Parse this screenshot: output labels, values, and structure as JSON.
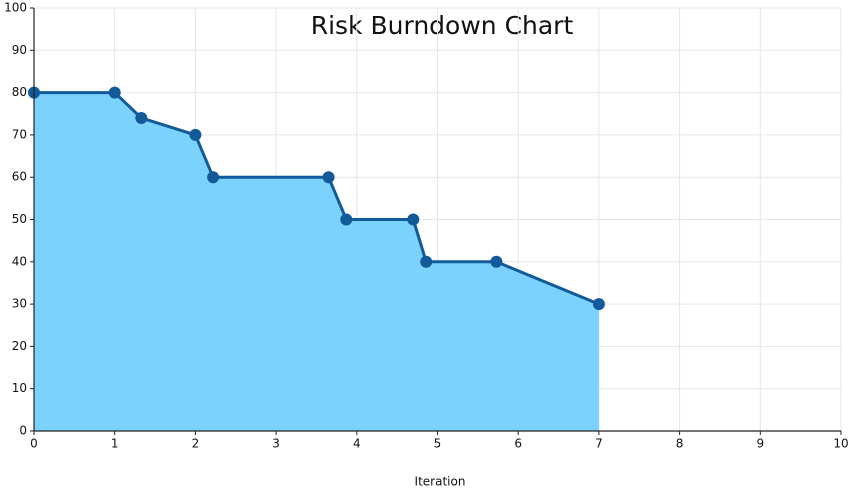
{
  "chart_data": {
    "type": "area",
    "title": "Risk Burndown Chart",
    "x_label": "Iteration",
    "x": [
      0,
      1,
      1.33,
      2,
      2.22,
      3.65,
      3.87,
      4.7,
      4.86,
      5.73,
      7
    ],
    "values": [
      80,
      80,
      74,
      70,
      60,
      60,
      50,
      50,
      40,
      40,
      30
    ],
    "fill_color": "#7bd3fd",
    "line_color": "#125a99",
    "xlim": [
      0,
      10
    ],
    "xticks": [
      0,
      1,
      2,
      3,
      4,
      5,
      6,
      7,
      8,
      9,
      10
    ],
    "ylim": [
      0,
      100
    ],
    "yticks": [
      0,
      10,
      20,
      30,
      40,
      50,
      60,
      70,
      80,
      90,
      100
    ],
    "grid": true
  }
}
